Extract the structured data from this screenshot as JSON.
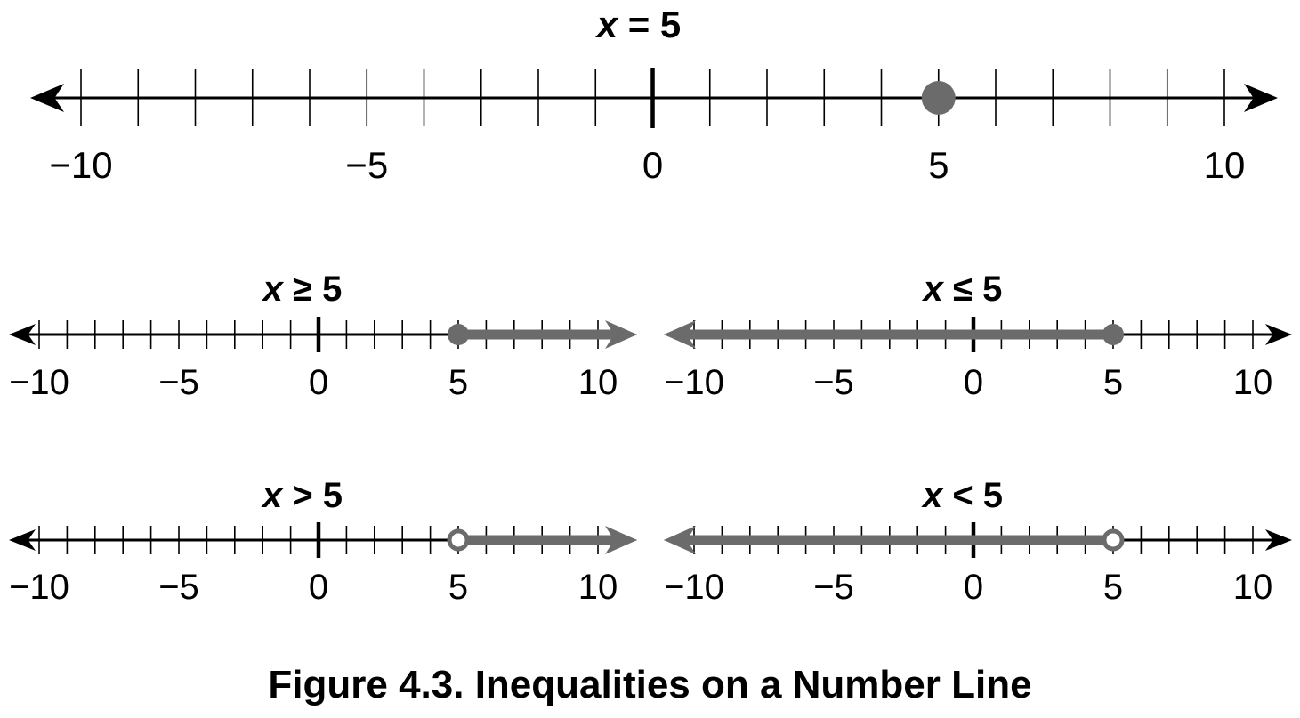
{
  "caption": "Figure 4.3. Inequalities on a Number Line",
  "colors": {
    "axis": "#000000",
    "highlight": "#6b6b6b"
  },
  "chart_data": [
    {
      "type": "number-line",
      "variable": "x",
      "relation": "=",
      "value": 5,
      "domain": [
        -10,
        10
      ],
      "tick_step": 1,
      "tick_labels": [
        "−10",
        "−5",
        "0",
        "5",
        "10"
      ],
      "tick_label_values": [
        -10,
        -5,
        0,
        5,
        10
      ],
      "endpoint": "closed",
      "ray": "none"
    },
    {
      "type": "number-line",
      "variable": "x",
      "relation": "≥",
      "value": 5,
      "domain": [
        -10,
        10
      ],
      "tick_step": 1,
      "tick_labels": [
        "−10",
        "−5",
        "0",
        "5",
        "10"
      ],
      "tick_label_values": [
        -10,
        -5,
        0,
        5,
        10
      ],
      "endpoint": "closed",
      "ray": "right"
    },
    {
      "type": "number-line",
      "variable": "x",
      "relation": "≤",
      "value": 5,
      "domain": [
        -10,
        10
      ],
      "tick_step": 1,
      "tick_labels": [
        "−10",
        "−5",
        "0",
        "5",
        "10"
      ],
      "tick_label_values": [
        -10,
        -5,
        0,
        5,
        10
      ],
      "endpoint": "closed",
      "ray": "left"
    },
    {
      "type": "number-line",
      "variable": "x",
      "relation": ">",
      "value": 5,
      "domain": [
        -10,
        10
      ],
      "tick_step": 1,
      "tick_labels": [
        "−10",
        "−5",
        "0",
        "5",
        "10"
      ],
      "tick_label_values": [
        -10,
        -5,
        0,
        5,
        10
      ],
      "endpoint": "open",
      "ray": "right"
    },
    {
      "type": "number-line",
      "variable": "x",
      "relation": "<",
      "value": 5,
      "domain": [
        -10,
        10
      ],
      "tick_step": 1,
      "tick_labels": [
        "−10",
        "−5",
        "0",
        "5",
        "10"
      ],
      "tick_label_values": [
        -10,
        -5,
        0,
        5,
        10
      ],
      "endpoint": "open",
      "ray": "left"
    }
  ]
}
